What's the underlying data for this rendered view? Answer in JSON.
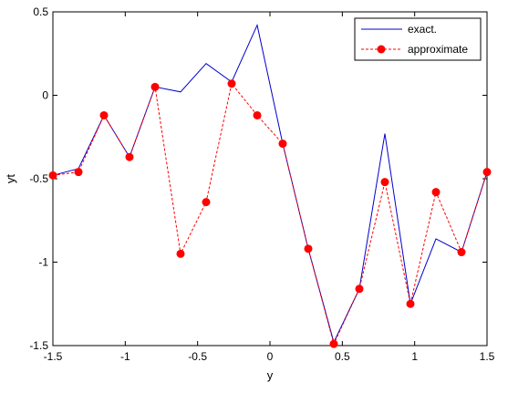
{
  "chart_data": {
    "type": "line",
    "xlabel": "y",
    "ylabel": "yt",
    "xlim": [
      -1.5,
      1.5
    ],
    "ylim": [
      -1.5,
      0.5
    ],
    "xticks": [
      "-1.5",
      "-1",
      "-0.5",
      "0",
      "0.5",
      "1",
      "1.5"
    ],
    "xtick_values": [
      -1.5,
      -1,
      -0.5,
      0,
      0.5,
      1,
      1.5
    ],
    "yticks": [
      "-1.5",
      "-1",
      "-0.5",
      "0",
      "0.5"
    ],
    "ytick_values": [
      -1.5,
      -1,
      -0.5,
      0,
      0.5
    ],
    "grid": false,
    "legend_position": "top-right",
    "series": [
      {
        "name": "exact.",
        "color": "#0000cc",
        "style": "solid",
        "marker": "none",
        "x": [
          -1.5,
          -1.3235,
          -1.1471,
          -0.9706,
          -0.7941,
          -0.6176,
          -0.4412,
          -0.2647,
          -0.0882,
          0.0882,
          0.2647,
          0.4412,
          0.6176,
          0.7941,
          0.9706,
          1.1471,
          1.3235,
          1.5
        ],
        "y": [
          -0.48,
          -0.44,
          -0.12,
          -0.37,
          0.05,
          0.02,
          0.19,
          0.08,
          0.42,
          -0.29,
          -0.92,
          -1.48,
          -1.16,
          -0.23,
          -1.25,
          -0.86,
          -0.94,
          -0.46
        ]
      },
      {
        "name": "approximate",
        "color": "#ff0000",
        "style": "dashed",
        "marker": "circle",
        "x": [
          -1.5,
          -1.3235,
          -1.1471,
          -0.9706,
          -0.7941,
          -0.6176,
          -0.4412,
          -0.2647,
          -0.0882,
          0.0882,
          0.2647,
          0.4412,
          0.6176,
          0.7941,
          0.9706,
          1.1471,
          1.3235,
          1.5
        ],
        "y": [
          -0.48,
          -0.46,
          -0.12,
          -0.37,
          0.05,
          -0.95,
          -0.64,
          0.07,
          -0.12,
          -0.29,
          -0.92,
          -1.49,
          -1.16,
          -0.52,
          -1.25,
          -0.58,
          -0.94,
          -0.46
        ]
      }
    ]
  }
}
